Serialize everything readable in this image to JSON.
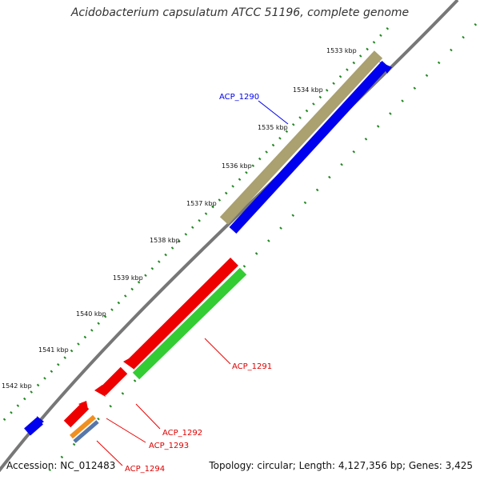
{
  "title": "Acidobacterium capsulatum ATCC 51196, complete genome",
  "footer": {
    "accession": "Accession: NC_012483",
    "summary": "Topology: circular; Length: 4,127,356 bp; Genes: 3,425"
  },
  "ticks": [
    "1533 kbp",
    "1534 kbp",
    "1535 kbp",
    "1536 kbp",
    "1537 kbp",
    "1538 kbp",
    "1539 kbp",
    "1540 kbp",
    "1541 kbp",
    "1542 kbp"
  ],
  "genes": [
    {
      "id": "acp1290",
      "label": "ACP_1290",
      "color": "#0000ee"
    },
    {
      "id": "acp1291",
      "label": "ACP_1291",
      "color": "#dd0000"
    },
    {
      "id": "acp1292",
      "label": "ACP_1292",
      "color": "#dd0000"
    },
    {
      "id": "acp1293",
      "label": "ACP_1293",
      "color": "#dd0000"
    },
    {
      "id": "acp1294",
      "label": "ACP_1294",
      "color": "#dd0000"
    }
  ],
  "colors": {
    "backbone": "#777777",
    "ticks": "#228822",
    "cds_forward": "#0000ee",
    "cds_reverse": "#ee0000",
    "trna": "#aaa070",
    "gc_positive": "#33cc33",
    "orange_feature": "#f09020",
    "steel_feature": "#5577aa"
  }
}
